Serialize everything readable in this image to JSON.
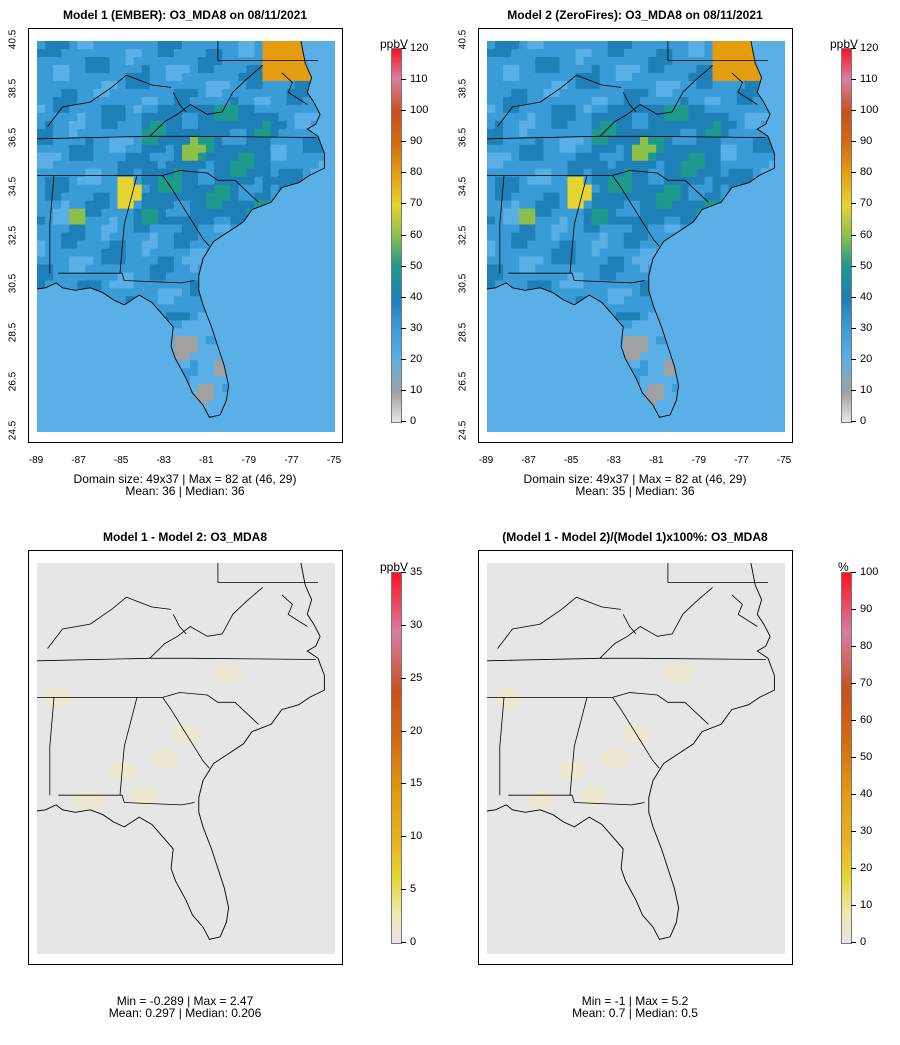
{
  "panels": [
    {
      "title": "Model 1 (EMBER): O3_MDA8 on 08/11/2021",
      "unit": "ppbV",
      "colorbar_ticks": [
        "120",
        "110",
        "100",
        "90",
        "80",
        "70",
        "60",
        "50",
        "40",
        "30",
        "20",
        "10",
        "0"
      ],
      "stats_line1": "Domain size: 49x37 | Max = 82 at (46, 29)",
      "stats_line2": "Mean: 36 |  Median: 36",
      "lat_ticks": [
        "40.5",
        "38.5",
        "36.5",
        "34.5",
        "32.5",
        "30.5",
        "28.5",
        "26.5",
        "24.5"
      ],
      "lon_ticks": [
        "-89",
        "-87",
        "-85",
        "-83",
        "-81",
        "-79",
        "-77",
        "-75"
      ]
    },
    {
      "title": "Model 2 (ZeroFires): O3_MDA8 on 08/11/2021",
      "unit": "ppbV",
      "colorbar_ticks": [
        "120",
        "110",
        "100",
        "90",
        "80",
        "70",
        "60",
        "50",
        "40",
        "30",
        "20",
        "10",
        "0"
      ],
      "stats_line1": "Domain size: 49x37 | Max = 82 at (46, 29)",
      "stats_line2": "Mean: 35 |  Median: 36",
      "lat_ticks": [
        "40.5",
        "38.5",
        "36.5",
        "34.5",
        "32.5",
        "30.5",
        "28.5",
        "26.5",
        "24.5"
      ],
      "lon_ticks": [
        "-89",
        "-87",
        "-85",
        "-83",
        "-81",
        "-79",
        "-77",
        "-75"
      ]
    },
    {
      "title": "Model 1 - Model 2: O3_MDA8",
      "unit": "ppbV",
      "colorbar_ticks": [
        "35",
        "30",
        "25",
        "20",
        "15",
        "10",
        "5",
        "0"
      ],
      "stats_line1": "Min = -0.289 | Max = 2.47",
      "stats_line2": "Mean: 0.297 |  Median: 0.206"
    },
    {
      "title": "(Model 1 - Model 2)/(Model 1)x100%: O3_MDA8",
      "unit": "%",
      "colorbar_ticks": [
        "100",
        "90",
        "80",
        "70",
        "60",
        "50",
        "40",
        "30",
        "20",
        "10",
        "0"
      ],
      "stats_line1": "Min = -1 | Max = 5.2",
      "stats_line2": "Mean: 0.7 |  Median: 0.5"
    }
  ],
  "colors": {
    "ocean": "#5ab0e6",
    "land_base": "#2a8cc0",
    "diff_bg": "#e6e6e6"
  }
}
